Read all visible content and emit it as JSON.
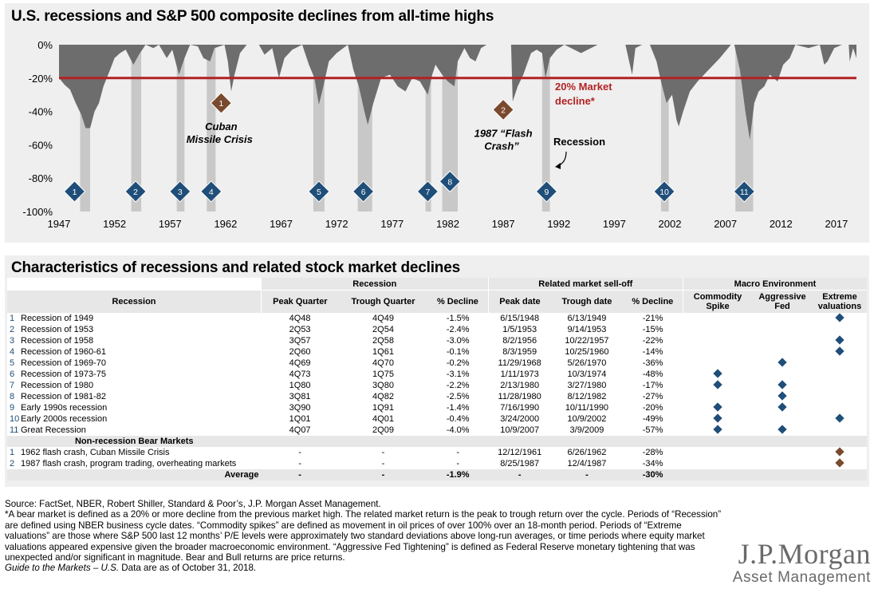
{
  "chart_data": {
    "type": "area",
    "title": "U.S. recessions and S&P 500 composite declines from all-time highs",
    "ylim": [
      -100,
      0
    ],
    "y_ticks": [
      "0%",
      "-20%",
      "-40%",
      "-60%",
      "-80%",
      "-100%"
    ],
    "x_ticks": [
      "1947",
      "1952",
      "1957",
      "1962",
      "1967",
      "1972",
      "1977",
      "1982",
      "1987",
      "1992",
      "1997",
      "2002",
      "2007",
      "2012",
      "2017"
    ],
    "xlim": [
      1947,
      2018.8
    ],
    "threshold": {
      "value": -20,
      "label": "20% Market decline*",
      "color": "#b22222"
    },
    "drawdown": [
      [
        1947.0,
        -20
      ],
      [
        1947.5,
        -24
      ],
      [
        1948.0,
        -27
      ],
      [
        1948.5,
        -35
      ],
      [
        1949.0,
        -42
      ],
      [
        1949.4,
        -50
      ],
      [
        1949.8,
        -50
      ],
      [
        1950.2,
        -40
      ],
      [
        1950.6,
        -35
      ],
      [
        1951.0,
        -25
      ],
      [
        1951.6,
        -15
      ],
      [
        1952.0,
        -8
      ],
      [
        1952.5,
        -5
      ],
      [
        1953.0,
        -3
      ],
      [
        1953.7,
        -12
      ],
      [
        1954.2,
        -6
      ],
      [
        1954.8,
        0
      ],
      [
        1955.5,
        -2
      ],
      [
        1956.0,
        0
      ],
      [
        1956.7,
        -8
      ],
      [
        1957.2,
        -3
      ],
      [
        1957.8,
        -18
      ],
      [
        1958.3,
        -8
      ],
      [
        1958.8,
        0
      ],
      [
        1959.5,
        -1
      ],
      [
        1960.0,
        -8
      ],
      [
        1960.6,
        -10
      ],
      [
        1961.0,
        -2
      ],
      [
        1961.9,
        0
      ],
      [
        1962.2,
        -10
      ],
      [
        1962.5,
        -28
      ],
      [
        1962.8,
        -18
      ],
      [
        1963.3,
        -5
      ],
      [
        1963.9,
        0
      ],
      [
        1965.0,
        0
      ],
      [
        1965.5,
        -6
      ],
      [
        1966.2,
        -2
      ],
      [
        1966.8,
        -20
      ],
      [
        1967.3,
        -8
      ],
      [
        1968.0,
        -3
      ],
      [
        1968.9,
        0
      ],
      [
        1969.5,
        -12
      ],
      [
        1970.0,
        -20
      ],
      [
        1970.4,
        -36
      ],
      [
        1970.8,
        -25
      ],
      [
        1971.3,
        -10
      ],
      [
        1972.0,
        -5
      ],
      [
        1973.0,
        0
      ],
      [
        1973.5,
        -15
      ],
      [
        1974.0,
        -25
      ],
      [
        1974.5,
        -40
      ],
      [
        1974.8,
        -48
      ],
      [
        1975.3,
        -35
      ],
      [
        1976.0,
        -20
      ],
      [
        1976.8,
        -18
      ],
      [
        1977.5,
        -25
      ],
      [
        1978.2,
        -28
      ],
      [
        1978.8,
        -20
      ],
      [
        1979.5,
        -22
      ],
      [
        1980.2,
        -30
      ],
      [
        1980.6,
        -18
      ],
      [
        1980.9,
        -12
      ],
      [
        1981.5,
        -18
      ],
      [
        1982.0,
        -22
      ],
      [
        1982.6,
        -25
      ],
      [
        1982.9,
        -10
      ],
      [
        1983.5,
        -2
      ],
      [
        1984.0,
        -8
      ],
      [
        1984.5,
        -10
      ],
      [
        1985.0,
        -2
      ],
      [
        1985.5,
        0
      ],
      [
        1987.0,
        0
      ],
      [
        1987.7,
        0
      ],
      [
        1987.85,
        -34
      ],
      [
        1988.3,
        -25
      ],
      [
        1988.8,
        -18
      ],
      [
        1989.5,
        -5
      ],
      [
        1990.0,
        -3
      ],
      [
        1990.5,
        -5
      ],
      [
        1990.8,
        -20
      ],
      [
        1991.2,
        -8
      ],
      [
        1991.8,
        -3
      ],
      [
        1992.5,
        0
      ],
      [
        1994.0,
        -5
      ],
      [
        1994.6,
        -3
      ],
      [
        1995.5,
        0
      ],
      [
        1998.0,
        0
      ],
      [
        1998.6,
        -18
      ],
      [
        1998.9,
        -2
      ],
      [
        1999.5,
        0
      ],
      [
        2000.2,
        0
      ],
      [
        2000.8,
        -10
      ],
      [
        2001.2,
        -22
      ],
      [
        2001.7,
        -35
      ],
      [
        2002.2,
        -30
      ],
      [
        2002.6,
        -45
      ],
      [
        2002.8,
        -49
      ],
      [
        2003.2,
        -40
      ],
      [
        2003.8,
        -28
      ],
      [
        2004.5,
        -22
      ],
      [
        2005.5,
        -15
      ],
      [
        2006.5,
        -8
      ],
      [
        2007.5,
        0
      ],
      [
        2007.8,
        0
      ],
      [
        2008.3,
        -15
      ],
      [
        2008.8,
        -40
      ],
      [
        2009.2,
        -57
      ],
      [
        2009.6,
        -35
      ],
      [
        2010.0,
        -28
      ],
      [
        2010.5,
        -25
      ],
      [
        2011.0,
        -18
      ],
      [
        2011.7,
        -22
      ],
      [
        2012.2,
        -12
      ],
      [
        2012.8,
        -8
      ],
      [
        2013.3,
        0
      ],
      [
        2014.5,
        -2
      ],
      [
        2015.5,
        0
      ],
      [
        2015.9,
        -12
      ],
      [
        2016.2,
        -10
      ],
      [
        2016.8,
        -2
      ],
      [
        2017.5,
        0
      ],
      [
        2018.1,
        0
      ],
      [
        2018.2,
        -10
      ],
      [
        2018.5,
        -2
      ],
      [
        2018.8,
        -8
      ]
    ],
    "recessions": [
      [
        1948.9,
        1949.8
      ],
      [
        1953.5,
        1954.4
      ],
      [
        1957.6,
        1958.3
      ],
      [
        1960.3,
        1961.1
      ],
      [
        1969.9,
        1970.9
      ],
      [
        1973.9,
        1975.2
      ],
      [
        1980.0,
        1980.5
      ],
      [
        1981.5,
        1982.9
      ],
      [
        1990.5,
        1991.2
      ],
      [
        2001.2,
        2001.9
      ],
      [
        2007.9,
        2009.5
      ]
    ],
    "recession_markers": [
      {
        "label": "1",
        "year": 1948.4,
        "y": -88
      },
      {
        "label": "2",
        "year": 1953.9,
        "y": -88
      },
      {
        "label": "3",
        "year": 1957.9,
        "y": -88
      },
      {
        "label": "4",
        "year": 1960.7,
        "y": -88
      },
      {
        "label": "5",
        "year": 1970.4,
        "y": -88
      },
      {
        "label": "6",
        "year": 1974.4,
        "y": -88
      },
      {
        "label": "7",
        "year": 1980.2,
        "y": -88
      },
      {
        "label": "8",
        "year": 1982.2,
        "y": -82
      },
      {
        "label": "9",
        "year": 1990.9,
        "y": -88
      },
      {
        "label": "10",
        "year": 2001.5,
        "y": -88
      },
      {
        "label": "11",
        "year": 2008.7,
        "y": -88
      }
    ],
    "event_markers": [
      {
        "label": "1",
        "year": 1961.6,
        "y": -35,
        "text1": "Cuban",
        "text2": "Missile Crisis"
      },
      {
        "label": "2",
        "year": 1987.0,
        "y": -39,
        "text1": "1987 “Flash",
        "text2": "Crash”"
      }
    ],
    "recession_label": "Recession",
    "colors": {
      "area": "#6d6d6d",
      "band": "#c8c8c8",
      "marker": "#1f4e79",
      "event": "#7a4a2e"
    }
  },
  "table": {
    "title": "Characteristics of recessions and related stock market declines",
    "group_headers": [
      "Recession",
      "Related market sell-off",
      "Macro Environment"
    ],
    "columns": [
      "Recession",
      "Peak Quarter",
      "Trough Quarter",
      "% Decline",
      "Peak date",
      "Trough date",
      "% Decline",
      "Commodity Spike",
      "Aggressive Fed",
      "Extreme valuations"
    ],
    "rows": [
      {
        "num": "1",
        "name": "Recession of 1949",
        "pq": "4Q48",
        "tq": "4Q49",
        "rd": "-1.5%",
        "pd": "6/15/1948",
        "td": "6/13/1949",
        "md": "-21%",
        "cs": false,
        "af": false,
        "ev": true
      },
      {
        "num": "2",
        "name": "Recession of 1953",
        "pq": "2Q53",
        "tq": "2Q54",
        "rd": "-2.4%",
        "pd": "1/5/1953",
        "td": "9/14/1953",
        "md": "-15%",
        "cs": false,
        "af": false,
        "ev": false
      },
      {
        "num": "3",
        "name": "Recession of 1958",
        "pq": "3Q57",
        "tq": "2Q58",
        "rd": "-3.0%",
        "pd": "8/2/1956",
        "td": "10/22/1957",
        "md": "-22%",
        "cs": false,
        "af": false,
        "ev": true
      },
      {
        "num": "4",
        "name": "Recession of 1960-61",
        "pq": "2Q60",
        "tq": "1Q61",
        "rd": "-0.1%",
        "pd": "8/3/1959",
        "td": "10/25/1960",
        "md": "-14%",
        "cs": false,
        "af": false,
        "ev": true
      },
      {
        "num": "5",
        "name": "Recession of 1969-70",
        "pq": "4Q69",
        "tq": "4Q70",
        "rd": "-0.2%",
        "pd": "11/29/1968",
        "td": "5/26/1970",
        "md": "-36%",
        "cs": false,
        "af": true,
        "ev": false
      },
      {
        "num": "6",
        "name": "Recession of 1973-75",
        "pq": "4Q73",
        "tq": "1Q75",
        "rd": "-3.1%",
        "pd": "1/11/1973",
        "td": "10/3/1974",
        "md": "-48%",
        "cs": true,
        "af": false,
        "ev": false
      },
      {
        "num": "7",
        "name": "Recession of 1980",
        "pq": "1Q80",
        "tq": "3Q80",
        "rd": "-2.2%",
        "pd": "2/13/1980",
        "td": "3/27/1980",
        "md": "-17%",
        "cs": true,
        "af": true,
        "ev": false
      },
      {
        "num": "8",
        "name": "Recession of 1981-82",
        "pq": "3Q81",
        "tq": "4Q82",
        "rd": "-2.5%",
        "pd": "11/28/1980",
        "td": "8/12/1982",
        "md": "-27%",
        "cs": false,
        "af": true,
        "ev": false
      },
      {
        "num": "9",
        "name": "Early 1990s recession",
        "pq": "3Q90",
        "tq": "1Q91",
        "rd": "-1.4%",
        "pd": "7/16/1990",
        "td": "10/11/1990",
        "md": "-20%",
        "cs": true,
        "af": true,
        "ev": false
      },
      {
        "num": "10",
        "name": "Early 2000s recession",
        "pq": "1Q01",
        "tq": "4Q01",
        "rd": "-0.4%",
        "pd": "3/24/2000",
        "td": "10/9/2002",
        "md": "-49%",
        "cs": true,
        "af": false,
        "ev": true
      },
      {
        "num": "11",
        "name": "Great Recession",
        "pq": "4Q07",
        "tq": "2Q09",
        "rd": "-4.0%",
        "pd": "10/9/2007",
        "td": "3/9/2009",
        "md": "-57%",
        "cs": true,
        "af": true,
        "ev": false
      }
    ],
    "non_recession_header": "Non-recession Bear Markets",
    "non_recession_rows": [
      {
        "num": "1",
        "name": "1962 flash crash, Cuban Missile Crisis",
        "pq": "-",
        "tq": "-",
        "rd": "-",
        "pd": "12/12/1961",
        "td": "6/26/1962",
        "md": "-28%",
        "cs": false,
        "af": false,
        "ev": true
      },
      {
        "num": "2",
        "name": "1987 flash crash, program trading, overheating markets",
        "pq": "-",
        "tq": "-",
        "rd": "-",
        "pd": "8/25/1987",
        "td": "12/4/1987",
        "md": "-34%",
        "cs": false,
        "af": false,
        "ev": true
      }
    ],
    "average": {
      "label": "Average",
      "pq": "-",
      "tq": "-",
      "rd": "-1.9%",
      "pd": "-",
      "td": "-",
      "md": "-30%"
    }
  },
  "notes": {
    "source": "Source: FactSet, NBER, Robert Shiller, Standard & Poor’s, J.P. Morgan Asset Management.",
    "definitions": "*A bear market is defined as a 20% or more decline from the previous market high. The related market return is the peak to trough return over the cycle. Periods of “Recession” are defined using NBER business cycle dates. “Commodity spikes” are defined as movement in oil prices of over 100% over an 18-month period. Periods of “Extreme valuations” are those where S&P 500 last 12 months’ P/E levels were approximately two standard deviations above long-run averages, or time periods where equity market valuations appeared expensive given the broader macroeconomic environment. “Aggressive Fed Tightening” is defined as Federal Reserve monetary tightening that was unexpected and/or significant in magnitude. Bear and Bull returns are price returns.",
    "guide_italic": "Guide to the Markets – U.S.",
    "guide_rest": " Data are as of October 31, 2018."
  },
  "logo": {
    "line1": "J.P.Morgan",
    "line2": "Asset Management"
  }
}
